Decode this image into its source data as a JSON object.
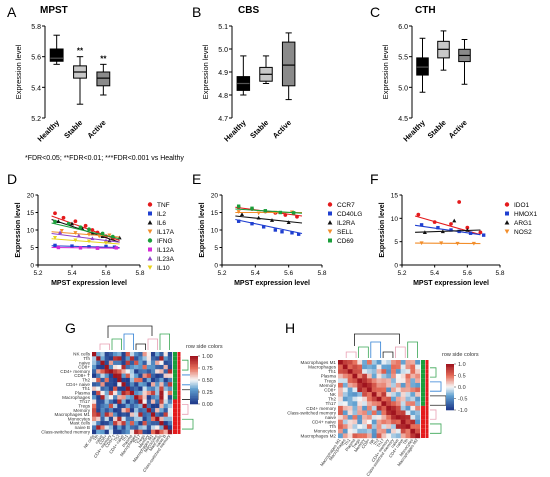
{
  "figure": {
    "footnote": "*FDR<0.05; **FDR<0.01; ***FDR<0.001 vs Healthy",
    "matrix_legend_title": "row side colors"
  },
  "chart_data": [
    {
      "id": "A",
      "type": "boxplot",
      "title": "MPST",
      "ylabel": "Expression level",
      "ylim": [
        5.2,
        5.8
      ],
      "yticks": [
        5.2,
        5.4,
        5.6,
        5.8
      ],
      "categories": [
        "Healthy",
        "Stable",
        "Active"
      ],
      "fills": [
        "#000000",
        "#c8c8c8",
        "#8a8a8a"
      ],
      "boxes": [
        {
          "min": 5.55,
          "q1": 5.57,
          "median": 5.59,
          "q3": 5.65,
          "max": 5.74,
          "sig": ""
        },
        {
          "min": 5.29,
          "q1": 5.46,
          "median": 5.5,
          "q3": 5.54,
          "max": 5.6,
          "sig": "**"
        },
        {
          "min": 5.35,
          "q1": 5.41,
          "median": 5.46,
          "q3": 5.5,
          "max": 5.55,
          "sig": "**"
        }
      ]
    },
    {
      "id": "B",
      "type": "boxplot",
      "title": "CBS",
      "ylabel": "Expression level",
      "ylim": [
        4.7,
        5.1
      ],
      "yticks": [
        4.7,
        4.8,
        4.9,
        5.0,
        5.1
      ],
      "categories": [
        "Healthy",
        "Stable",
        "Active"
      ],
      "fills": [
        "#000000",
        "#c8c8c8",
        "#8a8a8a"
      ],
      "boxes": [
        {
          "min": 4.8,
          "q1": 4.82,
          "median": 4.85,
          "q3": 4.88,
          "max": 4.97,
          "sig": ""
        },
        {
          "min": 4.85,
          "q1": 4.86,
          "median": 4.89,
          "q3": 4.92,
          "max": 4.97,
          "sig": ""
        },
        {
          "min": 4.78,
          "q1": 4.84,
          "median": 4.93,
          "q3": 5.03,
          "max": 5.07,
          "sig": ""
        }
      ]
    },
    {
      "id": "C",
      "type": "boxplot",
      "title": "CTH",
      "ylabel": "Expression level",
      "ylim": [
        4.5,
        6.0
      ],
      "yticks": [
        4.5,
        5.0,
        5.5,
        6.0
      ],
      "categories": [
        "Healthy",
        "Stable",
        "Active"
      ],
      "fills": [
        "#000000",
        "#c8c8c8",
        "#8a8a8a"
      ],
      "boxes": [
        {
          "min": 4.92,
          "q1": 5.2,
          "median": 5.33,
          "q3": 5.48,
          "max": 5.8,
          "sig": ""
        },
        {
          "min": 5.28,
          "q1": 5.48,
          "median": 5.62,
          "q3": 5.75,
          "max": 5.92,
          "sig": ""
        },
        {
          "min": 5.05,
          "q1": 5.42,
          "median": 5.52,
          "q3": 5.62,
          "max": 5.78,
          "sig": ""
        }
      ]
    },
    {
      "id": "D",
      "type": "scatter",
      "xlabel": "MPST expression level",
      "ylabel": "Expression level",
      "xlim": [
        5.2,
        5.8
      ],
      "ylim": [
        0,
        20
      ],
      "xticks": [
        5.2,
        5.4,
        5.6,
        5.8
      ],
      "yticks": [
        0,
        5,
        10,
        15,
        20
      ],
      "series": [
        {
          "name": "TNF",
          "color": "#e41a1c",
          "shape": "circle",
          "line": [
            14.0,
            7.0
          ],
          "points": [
            [
              5.3,
              14.8
            ],
            [
              5.35,
              13.5
            ],
            [
              5.42,
              12.5
            ],
            [
              5.48,
              11.2
            ],
            [
              5.52,
              10.0
            ],
            [
              5.55,
              9.3
            ],
            [
              5.6,
              8.2
            ],
            [
              5.64,
              7.5
            ]
          ]
        },
        {
          "name": "IL2",
          "color": "#1f3fd0",
          "shape": "square",
          "line": [
            5.5,
            5.0
          ],
          "points": [
            [
              5.3,
              5.6
            ],
            [
              5.4,
              5.4
            ],
            [
              5.5,
              5.2
            ],
            [
              5.55,
              4.9
            ],
            [
              5.6,
              5.3
            ],
            [
              5.65,
              5.1
            ]
          ]
        },
        {
          "name": "IL6",
          "color": "#111111",
          "shape": "triangle",
          "line": [
            13.0,
            6.5
          ],
          "points": [
            [
              5.32,
              12.5
            ],
            [
              5.4,
              11.8
            ],
            [
              5.46,
              10.5
            ],
            [
              5.52,
              9.0
            ],
            [
              5.58,
              8.2
            ],
            [
              5.62,
              7.0
            ],
            [
              5.68,
              7.8
            ]
          ]
        },
        {
          "name": "IL17A",
          "color": "#f28e2b",
          "shape": "triangle-down",
          "line": [
            9.5,
            8.0
          ],
          "points": [
            [
              5.34,
              9.8
            ],
            [
              5.42,
              9.2
            ],
            [
              5.5,
              8.7
            ],
            [
              5.56,
              8.2
            ],
            [
              5.62,
              8.5
            ]
          ]
        },
        {
          "name": "IFNG",
          "color": "#1a9e3a",
          "shape": "circle",
          "line": [
            12.0,
            7.5
          ],
          "points": [
            [
              5.3,
              12.4
            ],
            [
              5.38,
              11.8
            ],
            [
              5.45,
              10.8
            ],
            [
              5.5,
              10.2
            ],
            [
              5.58,
              9.0
            ],
            [
              5.64,
              8.1
            ]
          ]
        },
        {
          "name": "IL12A",
          "color": "#d62ad6",
          "shape": "square",
          "line": [
            5.0,
            4.8
          ],
          "points": [
            [
              5.32,
              5.0
            ],
            [
              5.45,
              4.9
            ],
            [
              5.55,
              4.8
            ],
            [
              5.66,
              4.9
            ]
          ]
        },
        {
          "name": "IL23A",
          "color": "#8e44c7",
          "shape": "triangle",
          "line": [
            9.0,
            6.5
          ],
          "points": [
            [
              5.33,
              9.3
            ],
            [
              5.44,
              8.4
            ],
            [
              5.52,
              7.6
            ],
            [
              5.6,
              7.0
            ]
          ]
        },
        {
          "name": "IL10",
          "color": "#e8d21d",
          "shape": "triangle-down",
          "line": [
            7.5,
            6.0
          ],
          "points": [
            [
              5.3,
              7.8
            ],
            [
              5.42,
              7.1
            ],
            [
              5.5,
              6.8
            ],
            [
              5.6,
              6.3
            ]
          ]
        }
      ]
    },
    {
      "id": "E",
      "type": "scatter",
      "xlabel": "MPST expression level",
      "ylabel": "Expression level",
      "xlim": [
        5.2,
        5.8
      ],
      "ylim": [
        0,
        20
      ],
      "xticks": [
        5.2,
        5.4,
        5.6,
        5.8
      ],
      "yticks": [
        0,
        5,
        10,
        15,
        20
      ],
      "series": [
        {
          "name": "CCR7",
          "color": "#e41a1c",
          "shape": "circle",
          "line": [
            16.5,
            14.0
          ],
          "points": [
            [
              5.3,
              16.5
            ],
            [
              5.38,
              16.0
            ],
            [
              5.46,
              15.3
            ],
            [
              5.52,
              14.9
            ],
            [
              5.58,
              14.3
            ],
            [
              5.65,
              13.8
            ]
          ]
        },
        {
          "name": "CD40LG",
          "color": "#1f3fd0",
          "shape": "square",
          "line": [
            13.0,
            9.0
          ],
          "points": [
            [
              5.3,
              12.5
            ],
            [
              5.38,
              11.8
            ],
            [
              5.45,
              10.9
            ],
            [
              5.52,
              10.0
            ],
            [
              5.56,
              9.5
            ],
            [
              5.62,
              9.2
            ],
            [
              5.66,
              8.8
            ]
          ]
        },
        {
          "name": "IL2RA",
          "color": "#111111",
          "shape": "triangle",
          "line": [
            14.0,
            12.0
          ],
          "points": [
            [
              5.32,
              14.5
            ],
            [
              5.42,
              13.5
            ],
            [
              5.5,
              12.8
            ],
            [
              5.6,
              12.2
            ]
          ]
        },
        {
          "name": "SELL",
          "color": "#f28e2b",
          "shape": "triangle-down",
          "line": [
            15.0,
            15.0
          ],
          "points": [
            [
              5.3,
              15.2
            ],
            [
              5.42,
              14.8
            ],
            [
              5.52,
              15.0
            ],
            [
              5.62,
              15.1
            ]
          ]
        },
        {
          "name": "CD69",
          "color": "#1a9e3a",
          "shape": "square",
          "line": [
            16.0,
            14.8
          ],
          "points": [
            [
              5.3,
              16.8
            ],
            [
              5.38,
              16.2
            ],
            [
              5.46,
              15.5
            ],
            [
              5.55,
              15.0
            ],
            [
              5.63,
              14.9
            ]
          ]
        }
      ]
    },
    {
      "id": "F",
      "type": "scatter",
      "xlabel": "MPST expression level",
      "ylabel": "Expression level",
      "xlim": [
        5.2,
        5.8
      ],
      "ylim": [
        0,
        15
      ],
      "xticks": [
        5.2,
        5.4,
        5.6,
        5.8
      ],
      "yticks": [
        0,
        5,
        10,
        15
      ],
      "series": [
        {
          "name": "IDO1",
          "color": "#e41a1c",
          "shape": "circle",
          "line": [
            10.5,
            6.5
          ],
          "points": [
            [
              5.3,
              10.8
            ],
            [
              5.4,
              9.2
            ],
            [
              5.5,
              8.8
            ],
            [
              5.55,
              13.5
            ],
            [
              5.6,
              8.0
            ],
            [
              5.68,
              7.0
            ]
          ]
        },
        {
          "name": "HMOX1",
          "color": "#1f3fd0",
          "shape": "square",
          "line": [
            8.5,
            6.5
          ],
          "points": [
            [
              5.32,
              8.6
            ],
            [
              5.42,
              8.0
            ],
            [
              5.5,
              7.5
            ],
            [
              5.55,
              7.2
            ],
            [
              5.62,
              6.8
            ],
            [
              5.7,
              6.4
            ]
          ]
        },
        {
          "name": "ARG1",
          "color": "#111111",
          "shape": "triangle",
          "line": [
            7.0,
            7.5
          ],
          "points": [
            [
              5.34,
              7.0
            ],
            [
              5.45,
              7.2
            ],
            [
              5.52,
              9.5
            ],
            [
              5.6,
              7.5
            ]
          ]
        },
        {
          "name": "NOS2",
          "color": "#f28e2b",
          "shape": "triangle-down",
          "line": [
            4.7,
            4.6
          ],
          "points": [
            [
              5.32,
              4.7
            ],
            [
              5.44,
              4.7
            ],
            [
              5.54,
              4.6
            ],
            [
              5.64,
              4.6
            ]
          ]
        }
      ]
    },
    {
      "id": "G",
      "type": "heatmap",
      "colorbar_ticks": [
        "1.00",
        "0.75",
        "0.50",
        "0.25",
        "0.00"
      ],
      "colormap": "blue-white-red",
      "range": [
        0,
        1
      ],
      "row_labels": [
        "NK cells",
        "Tfh",
        "naive",
        "CD8+",
        "CD4+ memory",
        "CD8+ T",
        "Th2",
        "CD4+ naive",
        "Th1",
        "Plasma",
        "Macrophages",
        "Th17",
        "Tregs",
        "Memory",
        "Macrophages M1",
        "Monocytes",
        "Mast cells",
        "naive B",
        "Class-switched memory"
      ]
    },
    {
      "id": "H",
      "type": "heatmap",
      "colorbar_ticks": [
        "1.0",
        "0.5",
        "0.0",
        "-0.5",
        "-1.0"
      ],
      "colormap": "blue-white-red",
      "range": [
        -1,
        1
      ],
      "row_labels": [
        "Macrophages M1",
        "Macrophages",
        "Th1",
        "Plasma",
        "Tregs",
        "Memory",
        "CD8+",
        "NK",
        "Th2",
        "Th17",
        "CD4+ memory",
        "Class-switched memory",
        "naive",
        "CD4+ naive",
        "Tfh",
        "Monocytes",
        "Macrophages M2"
      ]
    }
  ]
}
